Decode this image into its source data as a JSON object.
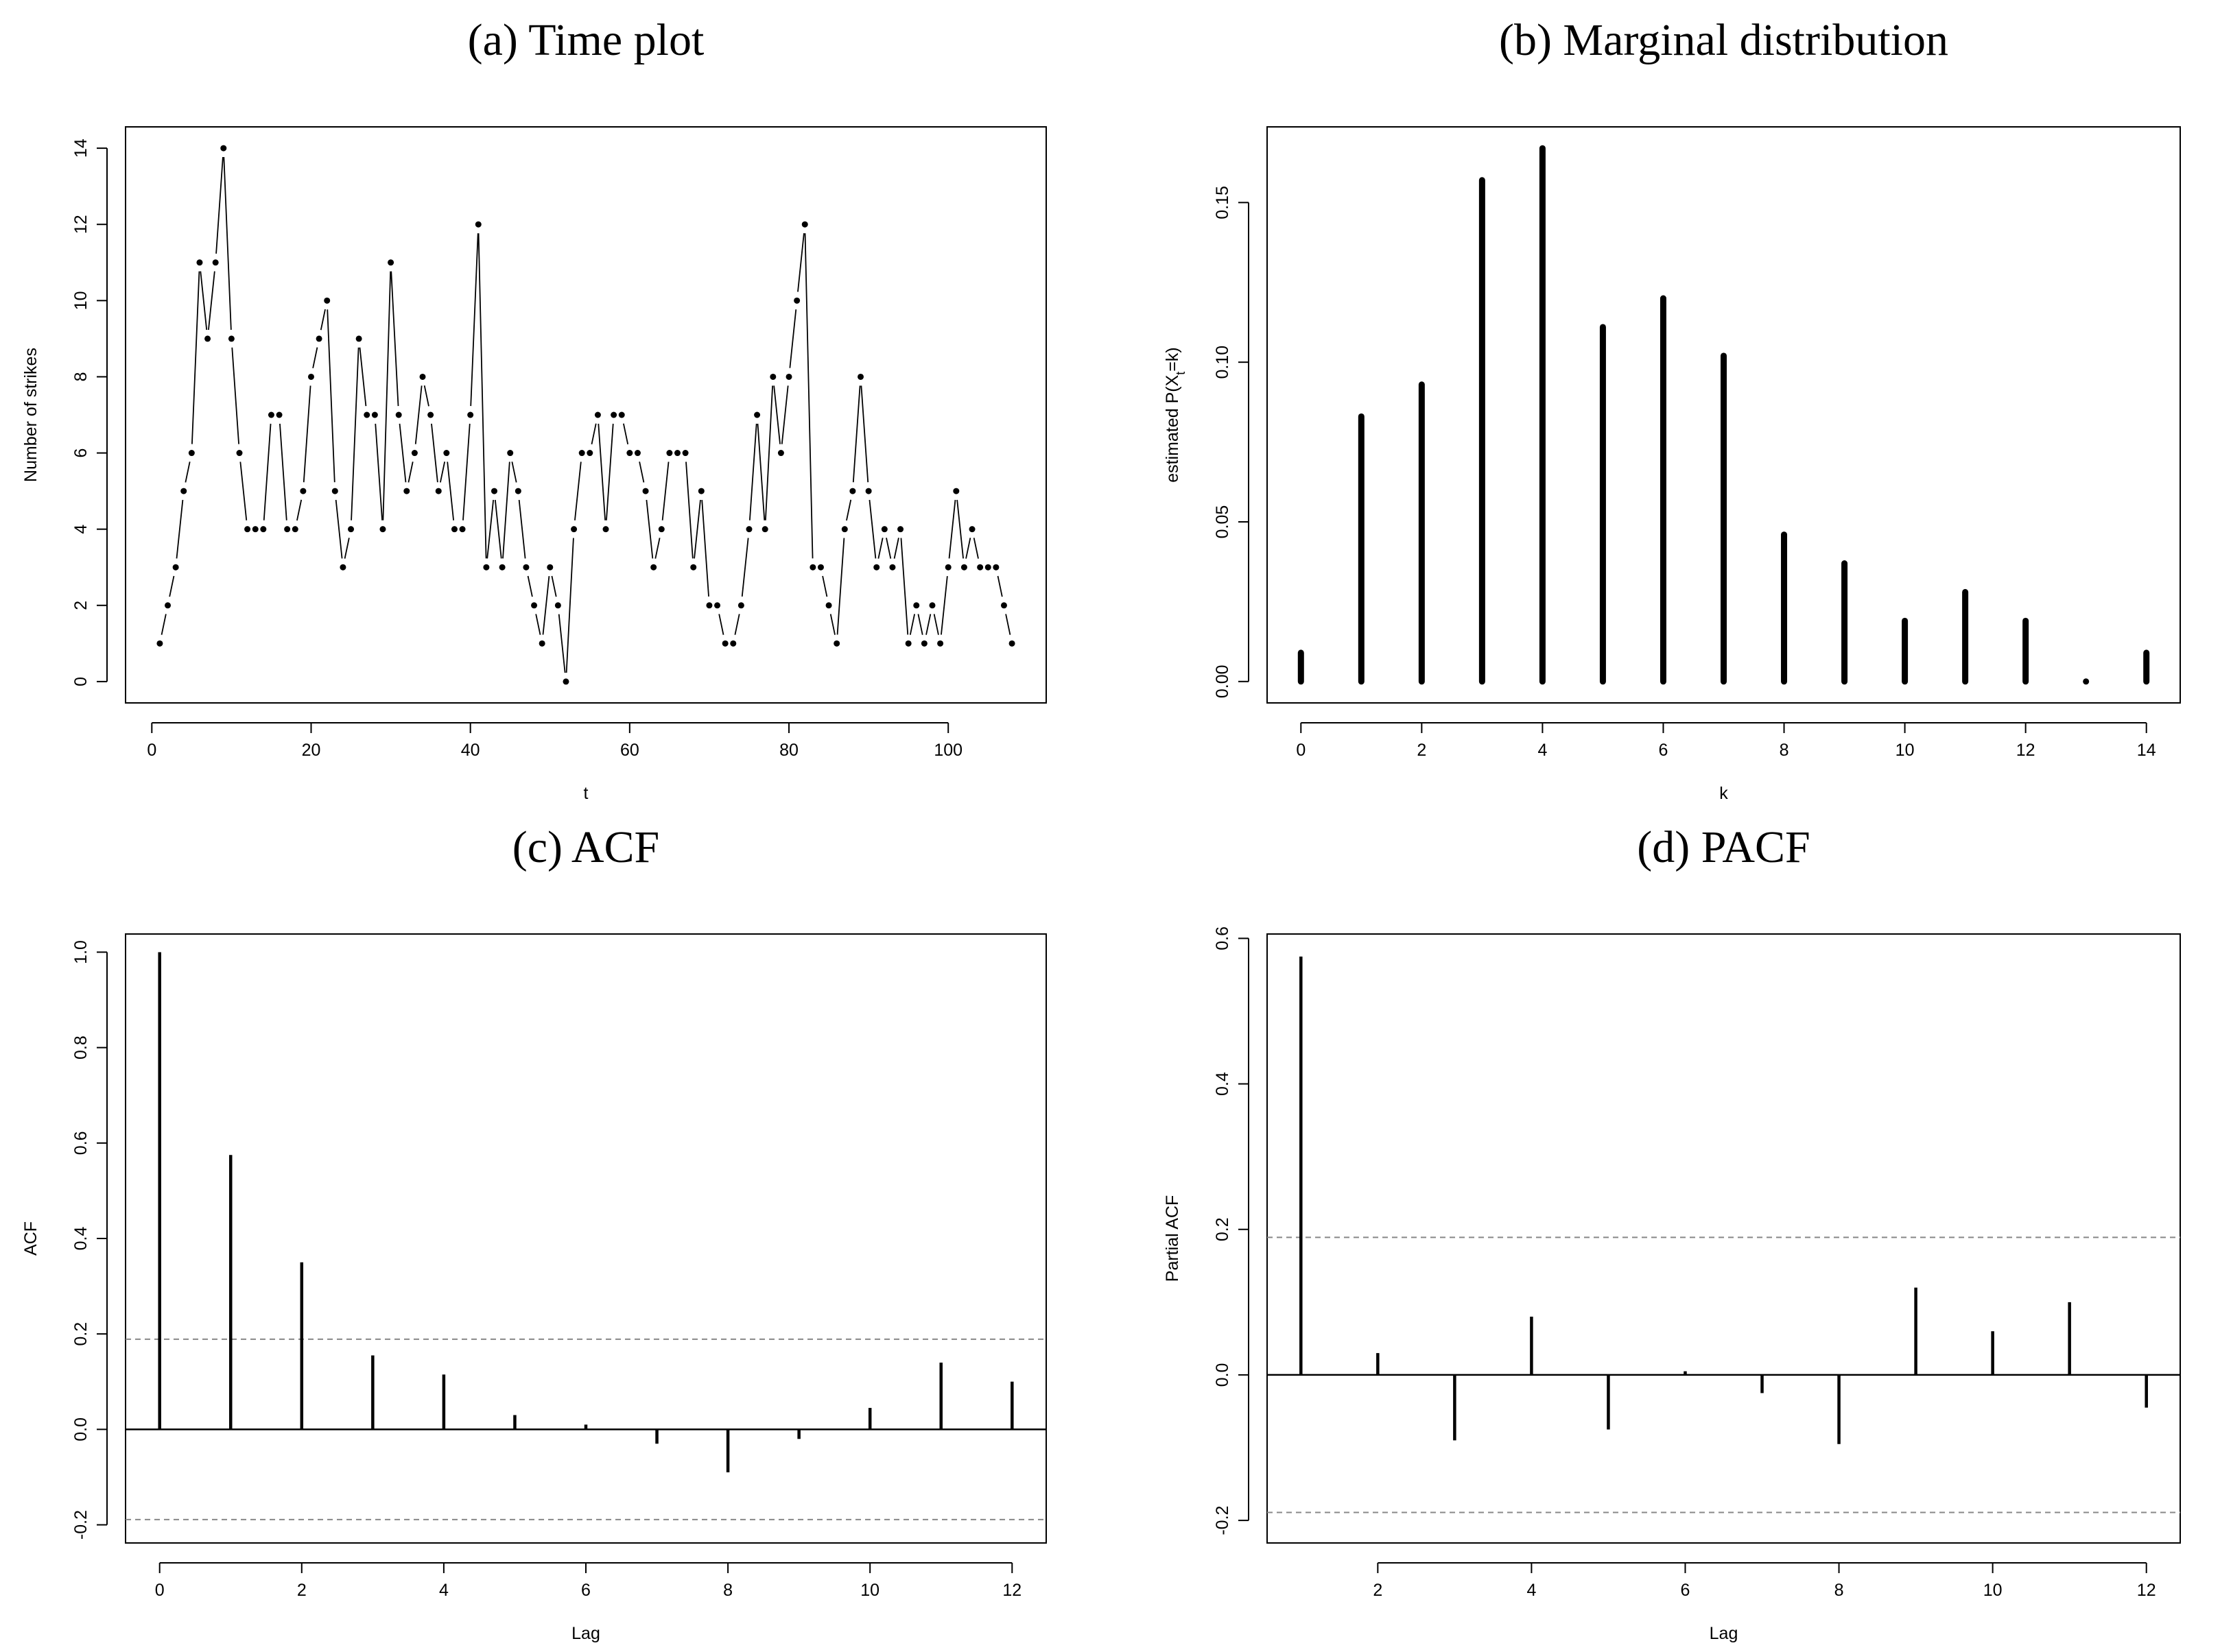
{
  "chart_data": [
    {
      "type": "line",
      "title": "(a) Time plot",
      "xlabel": "t",
      "ylabel": [
        "Number of strikes"
      ],
      "x": [
        1,
        2,
        3,
        4,
        5,
        6,
        7,
        8,
        9,
        10,
        11,
        12,
        13,
        14,
        15,
        16,
        17,
        18,
        19,
        20,
        21,
        22,
        23,
        24,
        25,
        26,
        27,
        28,
        29,
        30,
        31,
        32,
        33,
        34,
        35,
        36,
        37,
        38,
        39,
        40,
        41,
        42,
        43,
        44,
        45,
        46,
        47,
        48,
        49,
        50,
        51,
        52,
        53,
        54,
        55,
        56,
        57,
        58,
        59,
        60,
        61,
        62,
        63,
        64,
        65,
        66,
        67,
        68,
        69,
        70,
        71,
        72,
        73,
        74,
        75,
        76,
        77,
        78,
        79,
        80,
        81,
        82,
        83,
        84,
        85,
        86,
        87,
        88,
        89,
        90,
        91,
        92,
        93,
        94,
        95,
        96,
        97,
        98,
        99,
        100,
        101,
        102,
        103,
        104,
        105,
        106,
        107,
        108
      ],
      "y": [
        1,
        2,
        3,
        5,
        6,
        11,
        9,
        11,
        14,
        9,
        6,
        4,
        4,
        4,
        7,
        7,
        4,
        4,
        5,
        8,
        9,
        10,
        5,
        3,
        4,
        9,
        7,
        7,
        4,
        11,
        7,
        5,
        6,
        8,
        7,
        5,
        6,
        4,
        4,
        7,
        12,
        3,
        5,
        3,
        6,
        5,
        3,
        2,
        1,
        3,
        2,
        0,
        4,
        6,
        6,
        7,
        4,
        7,
        7,
        6,
        6,
        5,
        3,
        4,
        6,
        6,
        6,
        3,
        5,
        2,
        2,
        1,
        1,
        2,
        4,
        7,
        4,
        8,
        6,
        8,
        10,
        12,
        3,
        3,
        2,
        1,
        4,
        5,
        8,
        5,
        3,
        4,
        3,
        4,
        1,
        2,
        1,
        2,
        1,
        3,
        5,
        3,
        4,
        3,
        3,
        3,
        2,
        1
      ],
      "color": "#000000",
      "xlim": [
        -3.3,
        112.3
      ],
      "xticks": [
        0,
        20,
        40,
        60,
        80,
        100
      ],
      "ylim": [
        -0.56,
        14.56
      ],
      "yticks": [
        0,
        2,
        4,
        6,
        8,
        10,
        12,
        14
      ]
    },
    {
      "type": "bar",
      "title": "(b) Marginal distribution",
      "xlabel": "k",
      "ylabel": [
        "estimated P(X",
        "t",
        "=k)"
      ],
      "x": [
        0,
        1,
        2,
        3,
        4,
        5,
        6,
        7,
        8,
        9,
        10,
        11,
        12,
        13,
        14
      ],
      "y": [
        0.009,
        0.083,
        0.093,
        0.157,
        0.167,
        0.111,
        0.12,
        0.102,
        0.046,
        0.037,
        0.019,
        0.028,
        0.019,
        0,
        0.009
      ],
      "color": "#000000",
      "xlim": [
        -0.56,
        14.56
      ],
      "xticks": [
        0,
        2,
        4,
        6,
        8,
        10,
        12,
        14
      ],
      "ylim": [
        -0.0067,
        0.1737
      ],
      "yticks": [
        {
          "value": 0,
          "label": "0.00"
        },
        0.05,
        {
          "value": 0.1,
          "label": "0.10"
        },
        0.15
      ]
    },
    {
      "type": "stem",
      "title": "(c) ACF",
      "xlabel": "Lag",
      "ylabel": [
        "ACF"
      ],
      "x": [
        0,
        1,
        2,
        3,
        4,
        5,
        6,
        7,
        8,
        9,
        10,
        11,
        12
      ],
      "y": [
        1.0,
        0.575,
        0.35,
        0.155,
        0.115,
        0.03,
        0.01,
        -0.03,
        -0.09,
        -0.02,
        0.045,
        0.14,
        0.1
      ],
      "color": "#000000",
      "hlines": [
        0.189,
        -0.189
      ],
      "hline_color": "#888888",
      "xlim": [
        -0.48,
        12.48
      ],
      "xticks": [
        0,
        2,
        4,
        6,
        8,
        10,
        12
      ],
      "ylim": [
        -0.238,
        1.038
      ],
      "yticks": [
        -0.2,
        {
          "value": 0,
          "label": "0.0"
        },
        0.2,
        0.4,
        0.6,
        0.8,
        {
          "value": 1,
          "label": "1.0"
        }
      ]
    },
    {
      "type": "stem",
      "title": "(d) PACF",
      "xlabel": "Lag",
      "ylabel": [
        "Partial ACF"
      ],
      "x": [
        1,
        2,
        3,
        4,
        5,
        6,
        7,
        8,
        9,
        10,
        11,
        12
      ],
      "y": [
        0.575,
        0.03,
        -0.09,
        0.08,
        -0.075,
        0.005,
        -0.025,
        -0.095,
        0.12,
        0.06,
        0.1,
        -0.045
      ],
      "color": "#000000",
      "hlines": [
        0.189,
        -0.189
      ],
      "hline_color": "#888888",
      "xlim": [
        0.56,
        12.44
      ],
      "xticks": [
        2,
        4,
        6,
        8,
        10,
        12
      ],
      "ylim": [
        -0.231,
        0.606
      ],
      "yticks": [
        -0.2,
        {
          "value": 0,
          "label": "0.0"
        },
        0.2,
        0.4,
        0.6
      ]
    }
  ]
}
